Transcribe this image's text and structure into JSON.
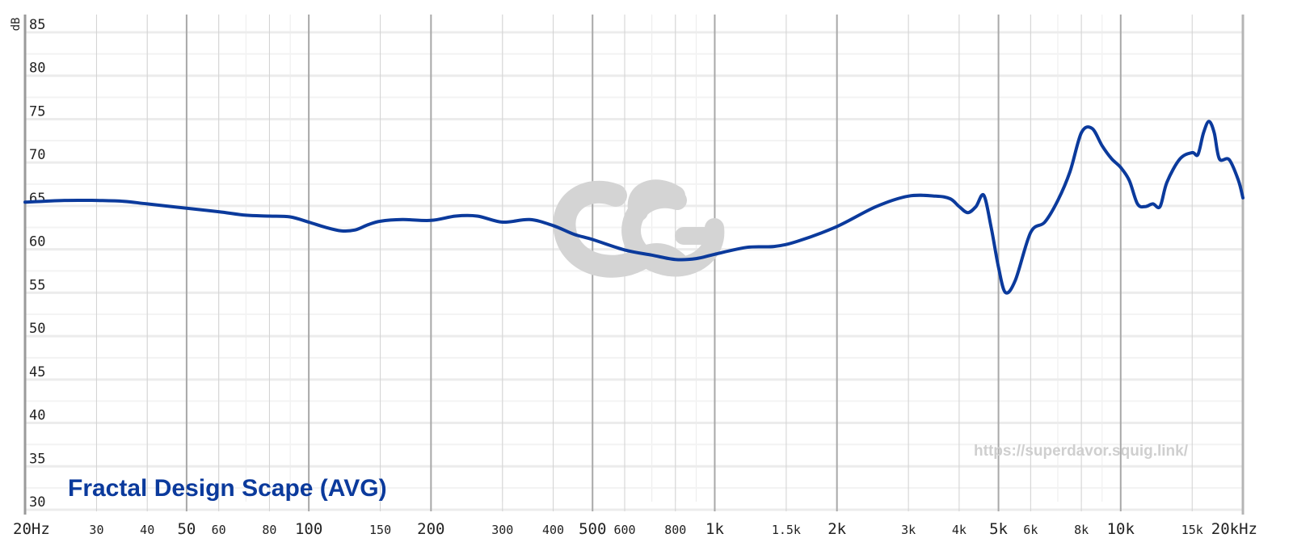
{
  "chart_data": {
    "type": "line",
    "ylabel": "dB",
    "xscale": "log",
    "xlim": [
      20,
      20000
    ],
    "ylim": [
      30,
      85
    ],
    "grid": true,
    "yticks": [
      30,
      35,
      40,
      45,
      50,
      55,
      60,
      65,
      70,
      75,
      80,
      85
    ],
    "xticks": [
      {
        "value": 20,
        "label": "20Hz",
        "major": true
      },
      {
        "value": 30,
        "label": "30",
        "major": false
      },
      {
        "value": 40,
        "label": "40",
        "major": false
      },
      {
        "value": 50,
        "label": "50",
        "major": true
      },
      {
        "value": 60,
        "label": "60",
        "major": false
      },
      {
        "value": 80,
        "label": "80",
        "major": false
      },
      {
        "value": 100,
        "label": "100",
        "major": true
      },
      {
        "value": 150,
        "label": "150",
        "major": false
      },
      {
        "value": 200,
        "label": "200",
        "major": true
      },
      {
        "value": 300,
        "label": "300",
        "major": false
      },
      {
        "value": 400,
        "label": "400",
        "major": false
      },
      {
        "value": 500,
        "label": "500",
        "major": true
      },
      {
        "value": 600,
        "label": "600",
        "major": false
      },
      {
        "value": 800,
        "label": "800",
        "major": false
      },
      {
        "value": 1000,
        "label": "1k",
        "major": true
      },
      {
        "value": 1500,
        "label": "1.5k",
        "major": false
      },
      {
        "value": 2000,
        "label": "2k",
        "major": true
      },
      {
        "value": 3000,
        "label": "3k",
        "major": false
      },
      {
        "value": 4000,
        "label": "4k",
        "major": false
      },
      {
        "value": 5000,
        "label": "5k",
        "major": true
      },
      {
        "value": 6000,
        "label": "6k",
        "major": false
      },
      {
        "value": 8000,
        "label": "8k",
        "major": false
      },
      {
        "value": 10000,
        "label": "10k",
        "major": true
      },
      {
        "value": 15000,
        "label": "15k",
        "major": false
      },
      {
        "value": 20000,
        "label": "20kHz",
        "major": true
      }
    ],
    "series": [
      {
        "name": "Fractal Design Scape (AVG)",
        "color": "#0b3a9c",
        "x": [
          20,
          25,
          30,
          35,
          40,
          50,
          60,
          70,
          80,
          90,
          100,
          110,
          120,
          130,
          140,
          150,
          170,
          200,
          230,
          260,
          300,
          350,
          400,
          450,
          500,
          600,
          700,
          800,
          900,
          1000,
          1200,
          1400,
          1600,
          2000,
          2500,
          3000,
          3500,
          3800,
          4000,
          4200,
          4400,
          4600,
          4800,
          5000,
          5200,
          5500,
          6000,
          6500,
          7000,
          7500,
          8000,
          8500,
          9000,
          9500,
          10000,
          10500,
          11000,
          11500,
          12000,
          12500,
          13000,
          14000,
          15000,
          15500,
          16000,
          16500,
          17000,
          17500,
          18500,
          19500,
          20000
        ],
        "values": [
          64.5,
          64.7,
          64.7,
          64.6,
          64.3,
          63.8,
          63.4,
          63.0,
          62.9,
          62.8,
          62.2,
          61.6,
          61.2,
          61.3,
          61.9,
          62.3,
          62.5,
          62.4,
          62.9,
          62.9,
          62.2,
          62.5,
          61.8,
          60.8,
          60.2,
          59.0,
          58.4,
          57.9,
          58.0,
          58.5,
          59.3,
          59.4,
          60.0,
          61.7,
          64.0,
          65.2,
          65.2,
          64.9,
          64.0,
          63.3,
          64.0,
          65.3,
          61.5,
          57.0,
          54.1,
          55.5,
          61.0,
          62.2,
          64.7,
          68.0,
          72.5,
          73.0,
          71.0,
          69.5,
          68.5,
          67.0,
          64.3,
          64.0,
          64.3,
          64.0,
          66.8,
          69.5,
          70.2,
          70.0,
          72.5,
          73.8,
          72.5,
          69.5,
          69.4,
          67.0,
          65.0
        ]
      }
    ]
  },
  "legend": {
    "label": "Fractal Design Scape (AVG)"
  },
  "watermark": {
    "url": "https://superdavor.squig.link/"
  }
}
